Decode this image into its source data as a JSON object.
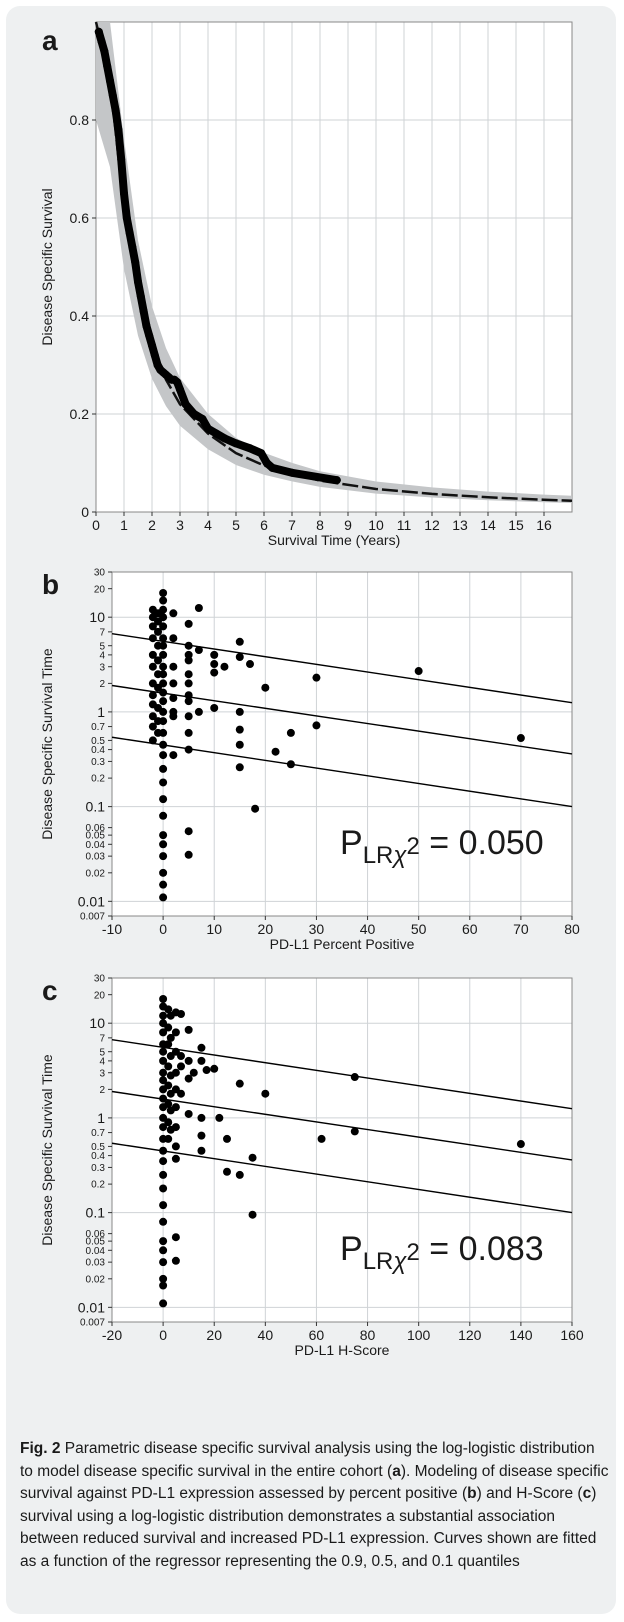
{
  "chart_data": [
    {
      "type": "line",
      "panel_label": "a",
      "xlabel": "Survival Time (Years)",
      "ylabel": "Disease Specific Survival",
      "xlim": [
        0,
        17
      ],
      "ylim": [
        0,
        1.0
      ],
      "x_ticks": [
        "0",
        "1",
        "2",
        "3",
        "4",
        "5",
        "6",
        "7",
        "8",
        "9",
        "10",
        "11",
        "12",
        "13",
        "14",
        "15",
        "16"
      ],
      "y_ticks": [
        "0",
        "0.2",
        "0.4",
        "0.6",
        "0.8"
      ],
      "grid": true,
      "series": [
        {
          "x": [
            0.1,
            0.2,
            0.3,
            0.4,
            0.5,
            0.6,
            0.7,
            0.8,
            0.9,
            1.0,
            1.1,
            1.2,
            1.3,
            1.4,
            1.5,
            1.6,
            1.7,
            1.8,
            1.9,
            2.0,
            2.1,
            2.2,
            2.3,
            2.4,
            2.5,
            2.6,
            2.7,
            2.8,
            2.9,
            3.0,
            3.2,
            3.5,
            3.8,
            4.0,
            4.3,
            4.6,
            5.0,
            5.5,
            5.9,
            6.1,
            6.3,
            7.0,
            8.6
          ],
          "y": [
            0.98,
            0.96,
            0.94,
            0.91,
            0.88,
            0.85,
            0.82,
            0.78,
            0.72,
            0.65,
            0.6,
            0.57,
            0.54,
            0.51,
            0.47,
            0.44,
            0.41,
            0.38,
            0.36,
            0.34,
            0.32,
            0.3,
            0.29,
            0.285,
            0.28,
            0.275,
            0.27,
            0.27,
            0.265,
            0.25,
            0.22,
            0.2,
            0.19,
            0.17,
            0.16,
            0.15,
            0.14,
            0.13,
            0.12,
            0.1,
            0.09,
            0.08,
            0.065
          ]
        },
        {
          "x": [
            0,
            0.5,
            1,
            1.5,
            2,
            2.5,
            3,
            4,
            5,
            6,
            7,
            8,
            10,
            12,
            14,
            16,
            17
          ],
          "y": [
            1.0,
            0.88,
            0.62,
            0.45,
            0.34,
            0.27,
            0.22,
            0.16,
            0.12,
            0.095,
            0.078,
            0.064,
            0.047,
            0.037,
            0.03,
            0.025,
            0.023
          ]
        }
      ]
    },
    {
      "type": "scatter",
      "panel_label": "b",
      "xlabel": "PD-L1 Percent Positive",
      "ylabel": "Disease Specific Survival Time",
      "xlim": [
        -10,
        80
      ],
      "ylim": [
        0.007,
        30
      ],
      "log_y": true,
      "x_ticks": [
        "-10",
        "0",
        "10",
        "20",
        "30",
        "40",
        "50",
        "60",
        "70",
        "80"
      ],
      "y_ticks": [
        "30",
        "20",
        "10",
        "7",
        "5",
        "4",
        "3",
        "2",
        "1",
        "0.7",
        "0.5",
        "0.4",
        "0.3",
        "0.2",
        "0.1",
        "0.06",
        "0.05",
        "0.04",
        "0.03",
        "0.02",
        "0.01",
        "0.007"
      ],
      "annotation": "= 0.050",
      "points": [
        [
          -2,
          12
        ],
        [
          -2,
          10
        ],
        [
          -2,
          8
        ],
        [
          -2,
          6
        ],
        [
          -2,
          4
        ],
        [
          -2,
          3
        ],
        [
          -2,
          2
        ],
        [
          -2,
          1.5
        ],
        [
          -2,
          1.2
        ],
        [
          -2,
          0.9
        ],
        [
          -2,
          0.7
        ],
        [
          -2,
          0.5
        ],
        [
          -1,
          11
        ],
        [
          -1,
          9
        ],
        [
          -1,
          7
        ],
        [
          -1,
          5
        ],
        [
          -1,
          3.5
        ],
        [
          -1,
          2.5
        ],
        [
          -1,
          1.8
        ],
        [
          -1,
          1.1
        ],
        [
          -1,
          0.8
        ],
        [
          -1,
          0.6
        ],
        [
          0,
          18
        ],
        [
          0,
          15
        ],
        [
          0,
          12
        ],
        [
          0,
          10
        ],
        [
          0,
          8
        ],
        [
          0,
          6
        ],
        [
          0,
          5
        ],
        [
          0,
          4
        ],
        [
          0,
          3
        ],
        [
          0,
          2.5
        ],
        [
          0,
          2
        ],
        [
          0,
          1.6
        ],
        [
          0,
          1.3
        ],
        [
          0,
          1
        ],
        [
          0,
          0.8
        ],
        [
          0,
          0.6
        ],
        [
          0,
          0.45
        ],
        [
          0,
          0.35
        ],
        [
          0,
          0.25
        ],
        [
          0,
          0.18
        ],
        [
          0,
          0.12
        ],
        [
          0,
          0.08
        ],
        [
          0,
          0.05
        ],
        [
          0,
          0.04
        ],
        [
          0,
          0.03
        ],
        [
          0,
          0.02
        ],
        [
          0,
          0.015
        ],
        [
          0,
          0.011
        ],
        [
          2,
          11
        ],
        [
          2,
          6
        ],
        [
          2,
          3
        ],
        [
          2,
          2
        ],
        [
          2,
          1.4
        ],
        [
          2,
          1
        ],
        [
          2,
          0.9
        ],
        [
          2,
          0.35
        ],
        [
          5,
          8.5
        ],
        [
          5,
          5
        ],
        [
          5,
          4
        ],
        [
          5,
          3.5
        ],
        [
          5,
          2.5
        ],
        [
          5,
          2
        ],
        [
          5,
          1.5
        ],
        [
          5,
          1.3
        ],
        [
          5,
          0.9
        ],
        [
          5,
          0.6
        ],
        [
          5,
          0.4
        ],
        [
          5,
          0.055
        ],
        [
          5,
          0.031
        ],
        [
          7,
          12.5
        ],
        [
          7,
          4.5
        ],
        [
          7,
          1
        ],
        [
          10,
          4
        ],
        [
          10,
          3.2
        ],
        [
          10,
          2.6
        ],
        [
          10,
          1.1
        ],
        [
          12,
          3
        ],
        [
          15,
          5.5
        ],
        [
          15,
          3.8
        ],
        [
          15,
          1
        ],
        [
          15,
          0.65
        ],
        [
          15,
          0.45
        ],
        [
          15,
          0.26
        ],
        [
          17,
          3.2
        ],
        [
          18,
          0.095
        ],
        [
          20,
          1.8
        ],
        [
          22,
          0.38
        ],
        [
          25,
          0.6
        ],
        [
          25,
          0.28
        ],
        [
          30,
          2.3
        ],
        [
          30,
          0.72
        ],
        [
          50,
          2.7
        ],
        [
          70,
          0.53
        ]
      ],
      "fit_lines": [
        {
          "quantile": "0.9",
          "x": [
            -10,
            80
          ],
          "y": [
            6.7,
            1.25
          ]
        },
        {
          "quantile": "0.5",
          "x": [
            -10,
            80
          ],
          "y": [
            1.9,
            0.36
          ]
        },
        {
          "quantile": "0.1",
          "x": [
            -10,
            80
          ],
          "y": [
            0.54,
            0.1
          ]
        }
      ]
    },
    {
      "type": "scatter",
      "panel_label": "c",
      "xlabel": "PD-L1 H-Score",
      "ylabel": "Disease Specific Survival Time",
      "xlim": [
        -20,
        160
      ],
      "ylim": [
        0.007,
        30
      ],
      "log_y": true,
      "x_ticks": [
        "-20",
        "0",
        "20",
        "40",
        "60",
        "80",
        "100",
        "120",
        "140",
        "160"
      ],
      "y_ticks": [
        "30",
        "20",
        "10",
        "7",
        "5",
        "4",
        "3",
        "2",
        "1",
        "0.7",
        "0.5",
        "0.4",
        "0.3",
        "0.2",
        "0.1",
        "0.06",
        "0.05",
        "0.04",
        "0.03",
        "0.02",
        "0.01",
        "0.007"
      ],
      "annotation": "= 0.083",
      "points": [
        [
          0,
          18
        ],
        [
          0,
          15
        ],
        [
          0,
          12
        ],
        [
          0,
          10
        ],
        [
          0,
          8
        ],
        [
          0,
          6
        ],
        [
          0,
          5
        ],
        [
          0,
          4
        ],
        [
          0,
          3
        ],
        [
          0,
          2.5
        ],
        [
          0,
          2
        ],
        [
          0,
          1.6
        ],
        [
          0,
          1.3
        ],
        [
          0,
          1
        ],
        [
          0,
          0.8
        ],
        [
          0,
          0.6
        ],
        [
          0,
          0.45
        ],
        [
          0,
          0.35
        ],
        [
          0,
          0.25
        ],
        [
          0,
          0.18
        ],
        [
          0,
          0.12
        ],
        [
          0,
          0.08
        ],
        [
          0,
          0.05
        ],
        [
          0,
          0.04
        ],
        [
          0,
          0.03
        ],
        [
          0,
          0.02
        ],
        [
          0,
          0.017
        ],
        [
          0,
          0.011
        ],
        [
          2,
          14
        ],
        [
          2,
          9
        ],
        [
          2,
          6
        ],
        [
          2,
          3.5
        ],
        [
          2,
          2.2
        ],
        [
          2,
          1.4
        ],
        [
          2,
          0.9
        ],
        [
          2,
          0.6
        ],
        [
          3,
          12
        ],
        [
          3,
          7
        ],
        [
          3,
          4.5
        ],
        [
          3,
          2.8
        ],
        [
          3,
          1.8
        ],
        [
          3,
          1.2
        ],
        [
          3,
          0.75
        ],
        [
          5,
          13
        ],
        [
          5,
          8
        ],
        [
          5,
          5
        ],
        [
          5,
          3
        ],
        [
          5,
          2
        ],
        [
          5,
          1.3
        ],
        [
          5,
          0.8
        ],
        [
          5,
          0.5
        ],
        [
          5,
          0.37
        ],
        [
          5,
          0.055
        ],
        [
          5,
          0.031
        ],
        [
          7,
          12.5
        ],
        [
          7,
          4.5
        ],
        [
          7,
          3.5
        ],
        [
          7,
          1.8
        ],
        [
          10,
          8.5
        ],
        [
          10,
          4
        ],
        [
          10,
          2.6
        ],
        [
          10,
          1.1
        ],
        [
          12,
          3
        ],
        [
          15,
          5.5
        ],
        [
          15,
          4
        ],
        [
          15,
          1
        ],
        [
          15,
          0.65
        ],
        [
          15,
          0.45
        ],
        [
          17,
          3.2
        ],
        [
          20,
          3.3
        ],
        [
          22,
          1
        ],
        [
          25,
          0.6
        ],
        [
          25,
          0.27
        ],
        [
          30,
          2.3
        ],
        [
          30,
          0.25
        ],
        [
          35,
          0.38
        ],
        [
          35,
          0.095
        ],
        [
          40,
          1.8
        ],
        [
          62,
          0.6
        ],
        [
          75,
          2.7
        ],
        [
          75,
          0.72
        ],
        [
          140,
          0.53
        ]
      ],
      "fit_lines": [
        {
          "quantile": "0.9",
          "x": [
            -20,
            160
          ],
          "y": [
            6.7,
            1.25
          ]
        },
        {
          "quantile": "0.5",
          "x": [
            -20,
            160
          ],
          "y": [
            1.9,
            0.36
          ]
        },
        {
          "quantile": "0.1",
          "x": [
            -20,
            160
          ],
          "y": [
            0.54,
            0.1
          ]
        }
      ]
    }
  ],
  "caption": {
    "fig_label": "Fig. 2",
    "part1": " Parametric disease specific survival analysis using the log-logistic distribution to model disease specific survival in the entire cohort (",
    "a": "a",
    "part2": "). Modeling of disease specific survival against PD-L1 expression assessed by percent positive (",
    "b": "b",
    "part3": ") and H-Score (",
    "c": "c",
    "part4": ") survival using a log-logistic distribution demonstrates a substantial association between reduced survival and increased PD-L1 expression. Curves shown are fitted as a function of the regressor representing the 0.9, 0.5, and 0.1 quantiles"
  }
}
